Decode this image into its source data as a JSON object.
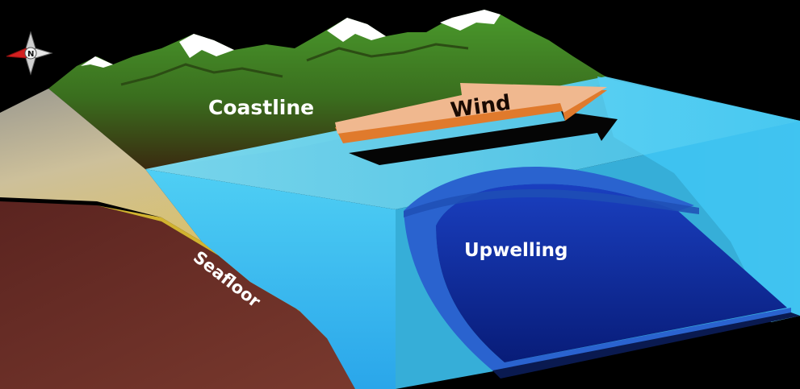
{
  "diagram": {
    "labels": {
      "coastline": "Coastline",
      "wind": "Wind",
      "upwelling": "Upwelling",
      "seafloor": "Seafloor"
    },
    "compass": {
      "letter": "N"
    }
  },
  "colors": {
    "background": "#000000",
    "mountain_green": "#3f7f24",
    "mountain_dark": "#2c4d14",
    "snow": "#ffffff",
    "land_grey": "#bcb7a2",
    "land_tan": "#d4bd78",
    "seafloor_yellow": "#d2b330",
    "seafloor_brown": "#6a2a26",
    "water_light": "#5ad6f4",
    "water_mid": "#2ea6e8",
    "water_deep": "#0b2a9a",
    "upwelling_edge": "#2a63cf",
    "wind_arrow": "#f0b88f",
    "wind_arrow_side": "#e07a2c",
    "wind_shadow": "#050505",
    "compass_red": "#d32020"
  }
}
